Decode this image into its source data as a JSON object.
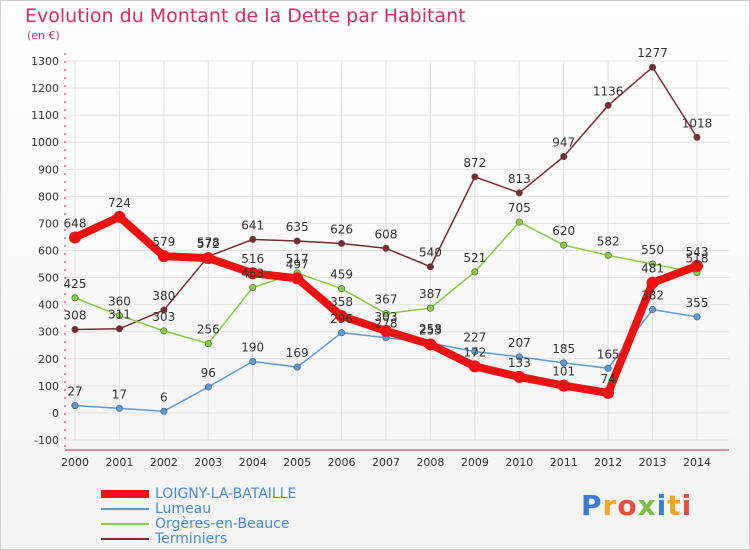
{
  "title": "Evolution du Montant de la Dette par Habitant",
  "subtitle": "(en €)",
  "logo_text": "Proxiti",
  "chart_data": {
    "type": "line",
    "x": [
      2000,
      2001,
      2002,
      2003,
      2004,
      2005,
      2006,
      2007,
      2008,
      2009,
      2010,
      2011,
      2012,
      2013,
      2014
    ],
    "ylim": [
      -100,
      1300
    ],
    "yticks": [
      -100,
      0,
      100,
      200,
      300,
      400,
      500,
      600,
      700,
      800,
      900,
      1000,
      1100,
      1200,
      1300
    ],
    "grid": true,
    "legend_position": "bottom-left",
    "series": [
      {
        "name": "LOIGNY-LA-BATAILLE",
        "color": "#ee1111",
        "values": [
          648,
          724,
          579,
          572,
          516,
          497,
          358,
          303,
          253,
          172,
          133,
          101,
          74,
          481,
          543
        ]
      },
      {
        "name": "Lumeau",
        "color": "#5b9bd5",
        "values": [
          27,
          17,
          6,
          96,
          190,
          169,
          296,
          278,
          258,
          227,
          207,
          185,
          165,
          382,
          355
        ]
      },
      {
        "name": "Orgères-en-Beauce",
        "color": "#88cc44",
        "values": [
          425,
          360,
          303,
          256,
          463,
          517,
          459,
          367,
          387,
          521,
          705,
          620,
          582,
          550,
          518
        ]
      },
      {
        "name": "Terminiers",
        "color": "#7a2a30",
        "values": [
          308,
          311,
          380,
          578,
          641,
          635,
          626,
          608,
          540,
          872,
          813,
          947,
          1136,
          1277,
          1018
        ]
      }
    ]
  }
}
